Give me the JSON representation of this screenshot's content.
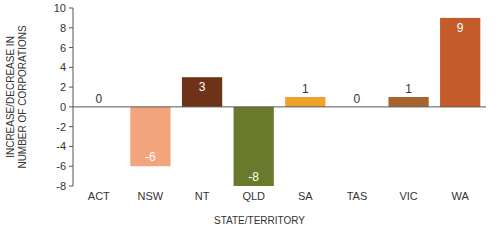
{
  "chart_data": {
    "type": "bar",
    "x_label": "STATE/TERRITORY",
    "y_label": "INCREASE/DECREASE IN NUMBER OF CORPORATIONS",
    "categories": [
      "ACT",
      "NSW",
      "NT",
      "QLD",
      "SA",
      "TAS",
      "VIC",
      "WA"
    ],
    "values": [
      0,
      -6,
      3,
      -8,
      1,
      0,
      1,
      9
    ],
    "colors": [
      "#c9c9c9",
      "#f2a57d",
      "#6e3218",
      "#6a7a2c",
      "#f1a22a",
      "#c9c9c9",
      "#a8642e",
      "#c45b2b"
    ],
    "ylim": [
      -8,
      10
    ],
    "yticks": [
      -8,
      -6,
      -4,
      -2,
      0,
      2,
      4,
      6,
      8,
      10
    ],
    "data_labels": true
  }
}
